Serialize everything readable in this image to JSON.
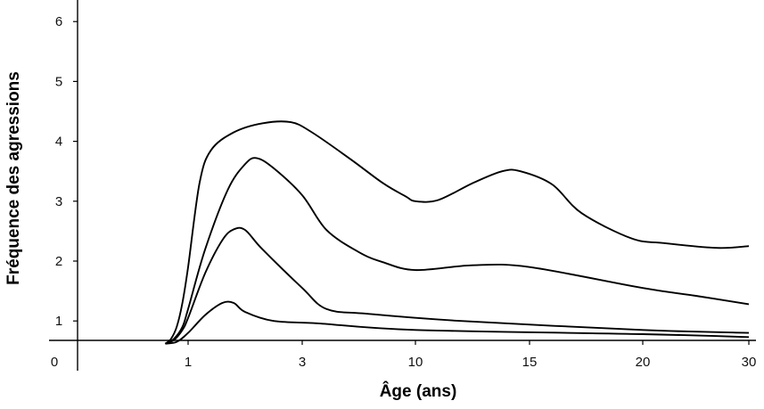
{
  "chart_data": {
    "type": "line",
    "xlabel": "Âge (ans)",
    "ylabel": "Fréquence des agressions",
    "x_ticks": [
      "1",
      "3",
      "10",
      "15",
      "20",
      "30"
    ],
    "y_ticks": [
      "1",
      "2",
      "3",
      "4",
      "5",
      "6"
    ],
    "origin_label": "0",
    "ylim": [
      0.6,
      6.2
    ],
    "grid": false,
    "legend": "none",
    "series": [
      {
        "points": [
          [
            0.6,
            0.62
          ],
          [
            0.7,
            0.7
          ],
          [
            0.8,
            0.9
          ],
          [
            0.9,
            1.3
          ],
          [
            1.0,
            1.9
          ],
          [
            1.2,
            3.3
          ],
          [
            1.4,
            3.85
          ],
          [
            1.8,
            4.15
          ],
          [
            2.3,
            4.3
          ],
          [
            2.8,
            4.32
          ],
          [
            3.6,
            4.15
          ],
          [
            6,
            3.7
          ],
          [
            8,
            3.3
          ],
          [
            9.4,
            3.08
          ],
          [
            10,
            3.0
          ],
          [
            11,
            3.02
          ],
          [
            12.5,
            3.3
          ],
          [
            13.8,
            3.5
          ],
          [
            14.6,
            3.5
          ],
          [
            16,
            3.28
          ],
          [
            17.3,
            2.8
          ],
          [
            19.5,
            2.38
          ],
          [
            22,
            2.3
          ],
          [
            27,
            2.22
          ],
          [
            30,
            2.25
          ]
        ]
      },
      {
        "points": [
          [
            0.6,
            0.62
          ],
          [
            0.75,
            0.7
          ],
          [
            0.9,
            0.9
          ],
          [
            1.0,
            1.2
          ],
          [
            1.3,
            2.2
          ],
          [
            1.7,
            3.2
          ],
          [
            2.0,
            3.62
          ],
          [
            2.2,
            3.72
          ],
          [
            2.5,
            3.55
          ],
          [
            3.0,
            3.1
          ],
          [
            4.5,
            2.52
          ],
          [
            6.5,
            2.15
          ],
          [
            8,
            1.98
          ],
          [
            10,
            1.85
          ],
          [
            12.5,
            1.93
          ],
          [
            15,
            1.9
          ],
          [
            20,
            1.55
          ],
          [
            25,
            1.42
          ],
          [
            30,
            1.28
          ]
        ]
      },
      {
        "points": [
          [
            0.6,
            0.62
          ],
          [
            0.75,
            0.68
          ],
          [
            0.9,
            0.85
          ],
          [
            1.0,
            1.05
          ],
          [
            1.3,
            1.8
          ],
          [
            1.6,
            2.35
          ],
          [
            1.8,
            2.53
          ],
          [
            2.0,
            2.52
          ],
          [
            2.3,
            2.2
          ],
          [
            3.0,
            1.55
          ],
          [
            4.5,
            1.2
          ],
          [
            7,
            1.12
          ],
          [
            12,
            1.0
          ],
          [
            20,
            0.85
          ],
          [
            30,
            0.8
          ]
        ]
      },
      {
        "points": [
          [
            0.6,
            0.62
          ],
          [
            0.8,
            0.65
          ],
          [
            1.0,
            0.8
          ],
          [
            1.3,
            1.1
          ],
          [
            1.6,
            1.3
          ],
          [
            1.8,
            1.3
          ],
          [
            2.0,
            1.15
          ],
          [
            2.5,
            1.0
          ],
          [
            4,
            0.96
          ],
          [
            10,
            0.85
          ],
          [
            20,
            0.78
          ],
          [
            30,
            0.73
          ]
        ]
      }
    ]
  }
}
